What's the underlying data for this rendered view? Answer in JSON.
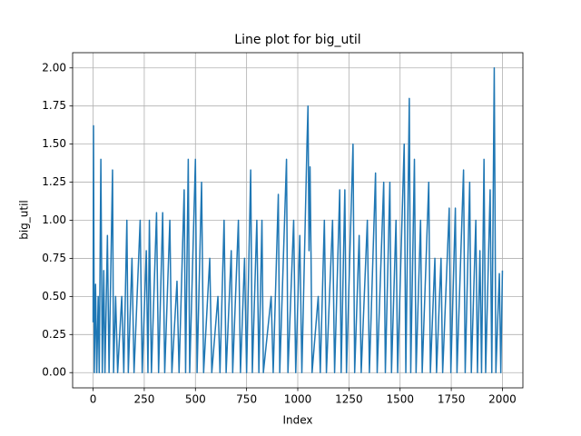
{
  "chart_data": {
    "type": "line",
    "title": "Line plot for big_util",
    "xlabel": "Index",
    "ylabel": "big_util",
    "series": [
      {
        "name": "big_util",
        "color": "#1f77b4",
        "x": [
          0,
          2,
          6,
          12,
          18,
          25,
          30,
          38,
          45,
          52,
          58,
          70,
          78,
          95,
          100,
          110,
          120,
          140,
          150,
          165,
          172,
          190,
          200,
          230,
          240,
          260,
          268,
          275,
          285,
          310,
          320,
          340,
          350,
          375,
          385,
          410,
          420,
          445,
          452,
          465,
          472,
          500,
          508,
          530,
          540,
          570,
          580,
          610,
          620,
          640,
          650,
          675,
          682,
          710,
          720,
          740,
          750,
          770,
          778,
          800,
          810,
          825,
          832,
          870,
          880,
          905,
          912,
          945,
          952,
          980,
          990,
          1010,
          1020,
          1045,
          1050,
          1055,
          1060,
          1065,
          1070,
          1100,
          1110,
          1130,
          1140,
          1170,
          1180,
          1205,
          1212,
          1230,
          1238,
          1270,
          1278,
          1300,
          1310,
          1340,
          1350,
          1380,
          1388,
          1420,
          1428,
          1450,
          1458,
          1480,
          1488,
          1520,
          1528,
          1545,
          1552,
          1570,
          1578,
          1600,
          1608,
          1640,
          1648,
          1670,
          1678,
          1700,
          1708,
          1740,
          1748,
          1770,
          1778,
          1810,
          1818,
          1840,
          1848,
          1870,
          1878,
          1890,
          1898,
          1910,
          1918,
          1940,
          1948,
          1960,
          1968,
          1985,
          1992,
          2000
        ],
        "values": [
          0.33,
          1.62,
          0,
          0.58,
          0,
          0.5,
          0,
          1.4,
          0,
          0.67,
          0,
          0.9,
          0,
          1.33,
          0,
          0.5,
          0,
          0.5,
          0,
          1.0,
          0,
          0.75,
          0,
          1.0,
          0,
          0.8,
          0,
          1.0,
          0,
          1.05,
          0,
          1.05,
          0,
          1.0,
          0,
          0.6,
          0,
          1.2,
          0,
          1.4,
          0,
          1.4,
          0,
          1.25,
          0,
          0.75,
          0,
          0.5,
          0,
          1.0,
          0,
          0.8,
          0,
          1.0,
          0,
          0.75,
          0,
          1.33,
          0,
          1.0,
          0,
          1.0,
          0,
          0.5,
          0,
          1.17,
          0,
          1.4,
          0,
          1.0,
          0,
          0.9,
          0,
          1.5,
          1.75,
          0.8,
          1.35,
          0.75,
          0,
          0.5,
          0,
          1.0,
          0,
          1.0,
          0,
          1.2,
          0,
          1.2,
          0,
          1.5,
          0,
          0.9,
          0,
          1.0,
          0,
          1.31,
          0,
          1.25,
          0,
          1.25,
          0,
          1.0,
          0,
          1.5,
          0,
          1.8,
          0,
          1.4,
          0,
          1.0,
          0,
          1.25,
          0,
          0.75,
          0,
          0.75,
          0,
          1.08,
          0,
          1.08,
          0,
          1.33,
          0,
          1.25,
          0,
          1.0,
          0,
          0.8,
          0,
          1.4,
          0,
          1.2,
          0,
          2.0,
          0,
          0.65,
          0,
          0.67
        ]
      }
    ],
    "xlim": [
      -100,
      2100
    ],
    "xticks": [
      0,
      250,
      500,
      750,
      1000,
      1250,
      1500,
      1750,
      2000
    ],
    "ylim": [
      -0.1,
      2.1
    ],
    "yticks": [
      {
        "value": 0,
        "label": "0.00"
      },
      {
        "value": 0.25,
        "label": "0.25"
      },
      {
        "value": 0.5,
        "label": "0.50"
      },
      {
        "value": 0.75,
        "label": "0.75"
      },
      {
        "value": 1,
        "label": "1.00"
      },
      {
        "value": 1.25,
        "label": "1.25"
      },
      {
        "value": 1.5,
        "label": "1.50"
      },
      {
        "value": 1.75,
        "label": "1.75"
      },
      {
        "value": 2,
        "label": "2.00"
      }
    ],
    "grid": true
  }
}
